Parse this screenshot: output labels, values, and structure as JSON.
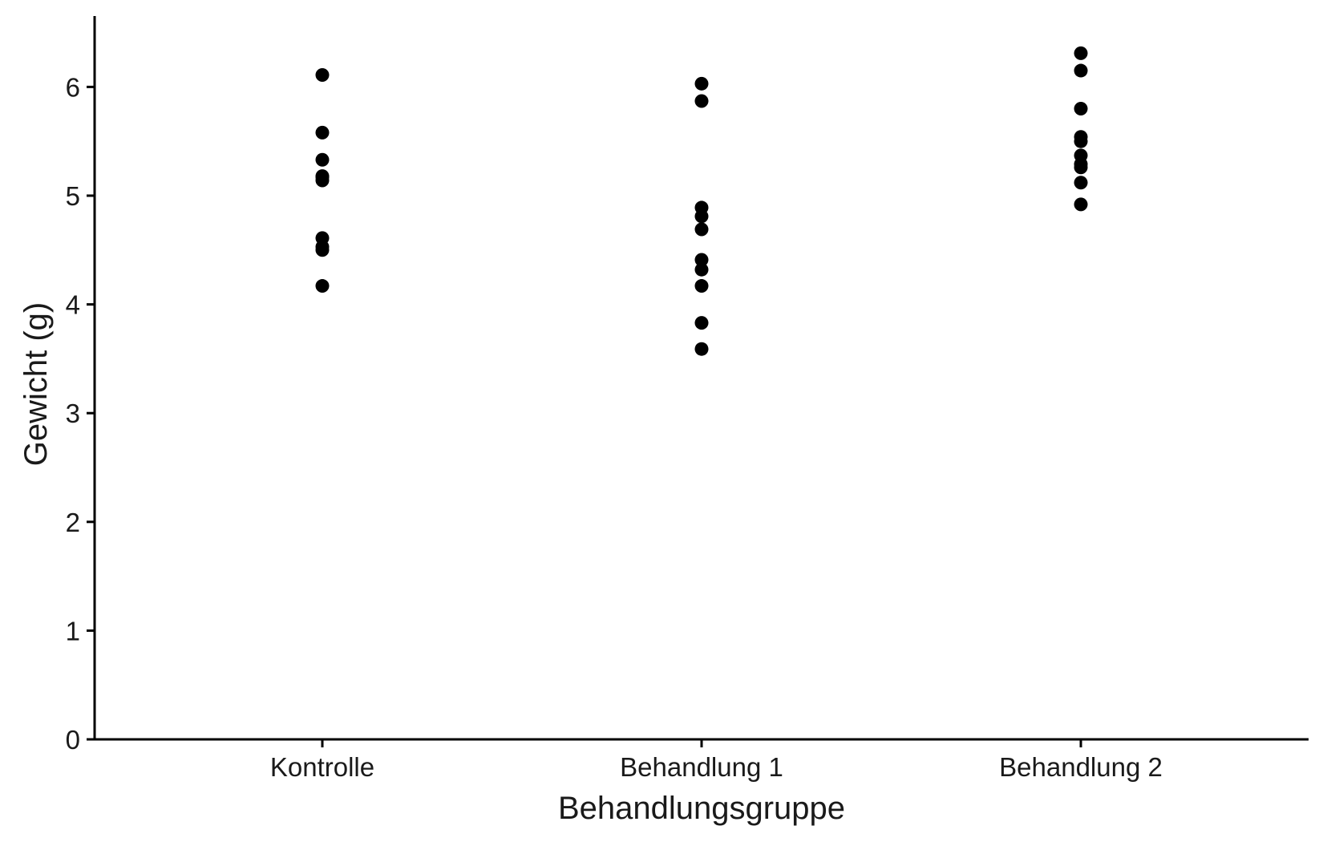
{
  "chart_data": {
    "type": "scatter",
    "title": "",
    "xlabel": "Behandlungsgruppe",
    "ylabel": "Gewicht (g)",
    "categories": [
      "Kontrolle",
      "Behandlung 1",
      "Behandlung 2"
    ],
    "yticks": [
      "0",
      "1",
      "2",
      "3",
      "4",
      "5",
      "6"
    ],
    "ylim": [
      0,
      6.6
    ],
    "grid": false,
    "legend": "none",
    "point_color": "#000000",
    "series": [
      {
        "category": "Kontrolle",
        "values": [
          4.17,
          4.5,
          4.53,
          4.61,
          5.14,
          5.17,
          5.18,
          5.33,
          5.58,
          6.11
        ]
      },
      {
        "category": "Behandlung 1",
        "values": [
          3.59,
          3.83,
          4.17,
          4.32,
          4.41,
          4.69,
          4.81,
          4.89,
          5.87,
          6.03
        ]
      },
      {
        "category": "Behandlung 2",
        "values": [
          4.92,
          5.12,
          5.26,
          5.29,
          5.37,
          5.5,
          5.54,
          5.8,
          6.15,
          6.31
        ]
      }
    ]
  }
}
